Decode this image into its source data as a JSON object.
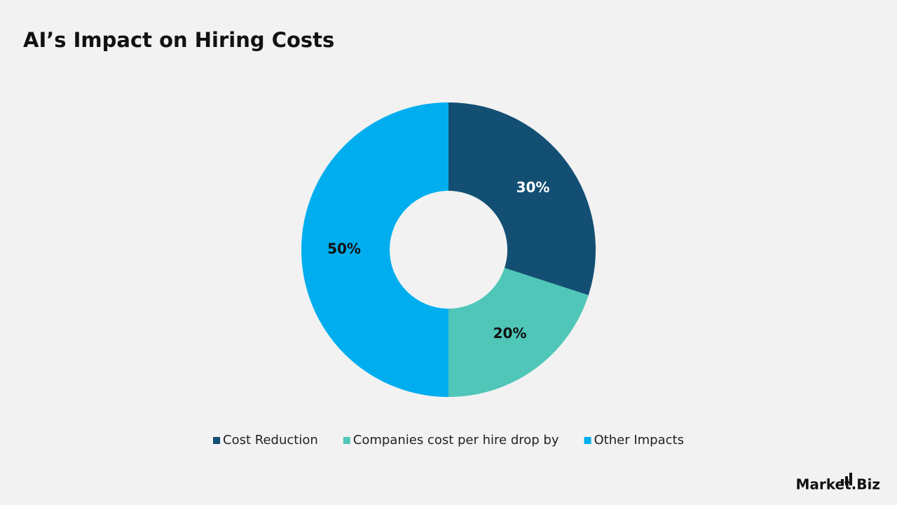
{
  "chart_data": {
    "type": "donut",
    "title": "AI’s Impact on Hiring Costs",
    "categories": [
      "Cost Reduction",
      "Companies cost per hire drop by",
      "Other Impacts"
    ],
    "values": [
      30,
      20,
      50
    ],
    "value_labels": [
      "30%",
      "20%",
      "50%"
    ],
    "colors": [
      "#134f73",
      "#4fc6b8",
      "#00aeef"
    ],
    "label_colors": [
      "#ffffff",
      "#111111",
      "#111111"
    ],
    "legend": "bottom"
  },
  "logo": "Market.Biz"
}
